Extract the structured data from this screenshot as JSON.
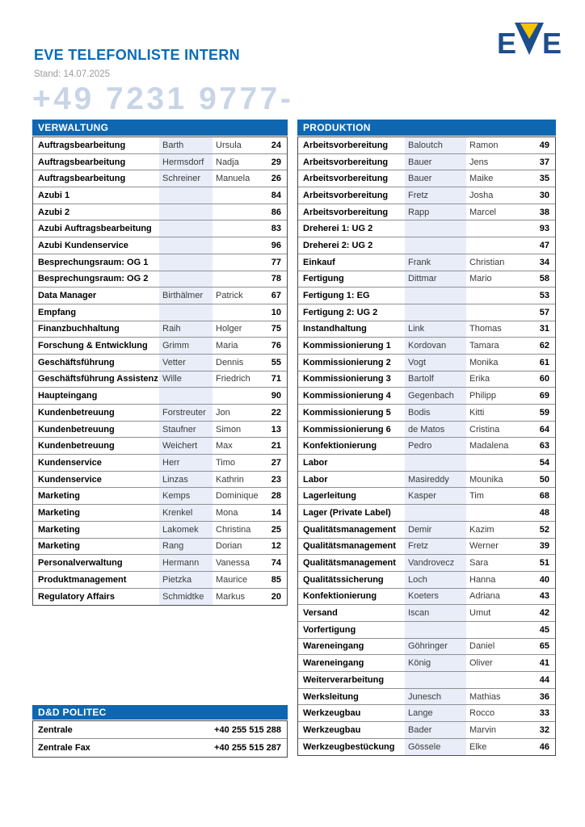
{
  "header": {
    "title": "EVE TELEFONLISTE INTERN",
    "date_line": "Stand: 14.07.2025",
    "phone_prefix": "+49 7231 9777-",
    "logo_text": "EVE"
  },
  "colors": {
    "title_blue": "#0b6cb8",
    "table_header_blue": "#0f67b1",
    "lastname_column_shade": "#e8edf8",
    "phone_prefix_gray_blue": "#c9d5e7",
    "logo_navy": "#1d4e8c",
    "logo_yellow": "#f5c400",
    "date_gray": "#9c9c9c"
  },
  "tables": {
    "verwaltung": {
      "title": "VERWALTUNG",
      "rows": [
        [
          "Auftragsbearbeitung",
          "Barth",
          "Ursula",
          "24"
        ],
        [
          "Auftragsbearbeitung",
          "Hermsdorf",
          "Nadja",
          "29"
        ],
        [
          "Auftragsbearbeitung",
          "Schreiner",
          "Manuela",
          "26"
        ],
        [
          "Azubi 1",
          "",
          "",
          "84"
        ],
        [
          "Azubi 2",
          "",
          "",
          "86"
        ],
        [
          "Azubi Auftragsbearbeitung",
          "",
          "",
          "83"
        ],
        [
          "Azubi Kundenservice",
          "",
          "",
          "96"
        ],
        [
          "Besprechungsraum: OG 1",
          "",
          "",
          "77"
        ],
        [
          "Besprechungsraum: OG 2",
          "",
          "",
          "78"
        ],
        [
          "Data Manager",
          "Birthälmer",
          "Patrick",
          "67"
        ],
        [
          "Empfang",
          "",
          "",
          "10"
        ],
        [
          "Finanzbuchhaltung",
          "Raih",
          "Holger",
          "75"
        ],
        [
          "Forschung & Entwicklung",
          "Grimm",
          "Maria",
          "76"
        ],
        [
          "Geschäftsführung",
          "Vetter",
          "Dennis",
          "55"
        ],
        [
          "Geschäftsführung Assistenz",
          "Wille",
          "Friedrich",
          "71"
        ],
        [
          "Haupteingang",
          "",
          "",
          "90"
        ],
        [
          "Kundenbetreuung",
          "Forstreuter",
          "Jon",
          "22"
        ],
        [
          "Kundenbetreuung",
          "Staufner",
          "Simon",
          "13"
        ],
        [
          "Kundenbetreuung",
          "Weichert",
          "Max",
          "21"
        ],
        [
          "Kundenservice",
          "Herr",
          "Timo",
          "27"
        ],
        [
          "Kundenservice",
          "Linzas",
          "Kathrin",
          "23"
        ],
        [
          "Marketing",
          "Kemps",
          "Dominique",
          "28"
        ],
        [
          "Marketing",
          "Krenkel",
          "Mona",
          "14"
        ],
        [
          "Marketing",
          "Lakomek",
          "Christina",
          "25"
        ],
        [
          "Marketing",
          "Rang",
          "Dorian",
          "12"
        ],
        [
          "Personalverwaltung",
          "Hermann",
          "Vanessa",
          "74"
        ],
        [
          "Produktmanagement",
          "Pietzka",
          "Maurice",
          "85"
        ],
        [
          "Regulatory Affairs",
          "Schmidtke",
          "Markus",
          "20"
        ]
      ]
    },
    "produktion": {
      "title": "PRODUKTION",
      "rows": [
        [
          "Arbeitsvorbereitung",
          "Baloutch",
          "Ramon",
          "49"
        ],
        [
          "Arbeitsvorbereitung",
          "Bauer",
          "Jens",
          "37"
        ],
        [
          "Arbeitsvorbereitung",
          "Bauer",
          "Maike",
          "35"
        ],
        [
          "Arbeitsvorbereitung",
          "Fretz",
          "Josha",
          "30"
        ],
        [
          "Arbeitsvorbereitung",
          "Rapp",
          "Marcel",
          "38"
        ],
        [
          "Dreherei 1: UG 2",
          "",
          "",
          "93"
        ],
        [
          "Dreherei 2: UG 2",
          "",
          "",
          "47"
        ],
        [
          "Einkauf",
          "Frank",
          "Christian",
          "34"
        ],
        [
          "Fertigung",
          "Dittmar",
          "Mario",
          "58"
        ],
        [
          "Fertigung 1: EG",
          "",
          "",
          "53"
        ],
        [
          "Fertigung 2: UG 2",
          "",
          "",
          "57"
        ],
        [
          "Instandhaltung",
          "Link",
          "Thomas",
          "31"
        ],
        [
          "Kommissionierung 1",
          "Kordovan",
          "Tamara",
          "62"
        ],
        [
          "Kommissionierung 2",
          "Vogt",
          "Monika",
          "61"
        ],
        [
          "Kommissionierung 3",
          "Bartolf",
          "Erika",
          "60"
        ],
        [
          "Kommissionierung 4",
          "Gegenbach",
          "Philipp",
          "69"
        ],
        [
          "Kommissionierung 5",
          "Bodis",
          "Kitti",
          "59"
        ],
        [
          "Kommissionierung 6",
          "de Matos",
          "Cristina",
          "64"
        ],
        [
          "Konfektionierung",
          "Pedro",
          "Madalena",
          "63"
        ],
        [
          "Labor",
          "",
          "",
          "54"
        ],
        [
          "Labor",
          "Masireddy",
          "Mounika",
          "50"
        ],
        [
          "Lagerleitung",
          "Kasper",
          "Tim",
          "68"
        ],
        [
          "Lager (Private Label)",
          "",
          "",
          "48"
        ],
        [
          "Qualitätsmanagement",
          "Demir",
          "Kazim",
          "52"
        ],
        [
          "Qualitätsmanagement",
          "Fretz",
          "Werner",
          "39"
        ],
        [
          "Qualitätsmanagement",
          "Vandrovecz",
          "Sara",
          "51"
        ],
        [
          "Qualitätssicherung",
          "Loch",
          "Hanna",
          "40"
        ],
        [
          "Konfektionierung",
          "Koeters",
          "Adriana",
          "43"
        ],
        [
          "Versand",
          "Iscan",
          "Umut",
          "42"
        ],
        [
          "Vorfertigung",
          "",
          "",
          "45"
        ],
        [
          "Wareneingang",
          "Göhringer",
          "Daniel",
          "65"
        ],
        [
          "Wareneingang",
          "König",
          "Oliver",
          "41"
        ],
        [
          "Weiterverarbeitung",
          "",
          "",
          "44"
        ],
        [
          "Werksleitung",
          "Junesch",
          "Mathias",
          "36"
        ],
        [
          "Werkzeugbau",
          "Lange",
          "Rocco",
          "33"
        ],
        [
          "Werkzeugbau",
          "Bader",
          "Marvin",
          "32"
        ],
        [
          "Werkzeugbestückung",
          "Gössele",
          "Elke",
          "46"
        ]
      ]
    },
    "politec": {
      "title": "D&D POLITEC",
      "rows": [
        [
          "Zentrale",
          "+40 255 515 288"
        ],
        [
          "Zentrale Fax",
          "+40 255 515 287"
        ]
      ]
    }
  }
}
